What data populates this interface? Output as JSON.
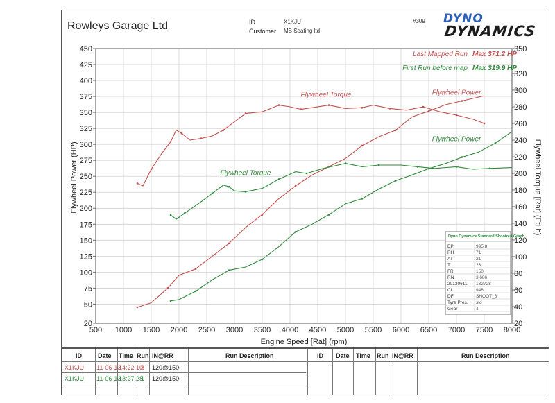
{
  "header": {
    "company": "Rowleys Garage Ltd",
    "id_label": "ID",
    "id_value": "X1KJU",
    "customer_label": "Customer",
    "customer_value": "MB Seating ltd",
    "ref": "#309",
    "logo_line1": "DYNO",
    "logo_line2": "DYNAMICS"
  },
  "legend": {
    "run1_name": "Last Mapped Run",
    "run1_max": "Max 371.2 HP",
    "run2_name": "First Run before map",
    "run2_max": "Max 319.9 HP"
  },
  "colors": {
    "run1": "#c0504d",
    "run2": "#2e8b3a",
    "grid": "#c8c8c8",
    "axis": "#555555"
  },
  "chart_data": {
    "type": "line",
    "xlabel": "Engine Speed [Rat] (rpm)",
    "ylabel": "Flywheel Power (HP)",
    "y2label": "Flywheel Torque [Rat] (FtLb)",
    "xlim": [
      500,
      8000
    ],
    "ylim": [
      20,
      450
    ],
    "y2lim": [
      20,
      350
    ],
    "x_ticks": [
      500,
      1000,
      1500,
      2000,
      2500,
      3000,
      3500,
      4000,
      4500,
      5000,
      5500,
      6000,
      6500,
      7000,
      7500,
      8000
    ],
    "y_ticks": [
      20,
      50,
      75,
      100,
      125,
      150,
      175,
      200,
      225,
      250,
      275,
      300,
      325,
      350,
      375,
      400,
      425,
      450
    ],
    "y2_ticks": [
      20,
      40,
      60,
      80,
      100,
      120,
      140,
      160,
      180,
      200,
      220,
      240,
      260,
      280,
      300,
      320,
      350
    ],
    "grid": true,
    "annotations": [
      {
        "text": "Flywheel Torque",
        "series": "run1",
        "x": 4650,
        "y2": 292
      },
      {
        "text": "Flywheel Power",
        "series": "run1",
        "x": 7000,
        "y": 378
      },
      {
        "text": "Flywheel Torque",
        "series": "run2",
        "x": 3200,
        "y2": 198
      },
      {
        "text": "Flywheel Power",
        "series": "run2",
        "x": 7000,
        "y": 305
      }
    ],
    "series": [
      {
        "name": "Last Mapped Run",
        "quantity": "Flywheel Power",
        "axis": "left",
        "color": "#c0504d",
        "x": [
          1250,
          1500,
          1800,
          2000,
          2300,
          2600,
          2900,
          3200,
          3500,
          3800,
          4100,
          4400,
          4700,
          5000,
          5300,
          5600,
          5900,
          6200,
          6500,
          6800,
          7100,
          7500
        ],
        "y": [
          45,
          52,
          75,
          95,
          105,
          125,
          145,
          170,
          190,
          215,
          235,
          252,
          265,
          278,
          298,
          312,
          322,
          343,
          352,
          362,
          368,
          376
        ]
      },
      {
        "name": "Last Mapped Run",
        "quantity": "Flywheel Torque",
        "axis": "right",
        "color": "#c0504d",
        "x": [
          1250,
          1350,
          1500,
          1700,
          1850,
          1950,
          2050,
          2200,
          2400,
          2600,
          2800,
          3000,
          3200,
          3500,
          3800,
          4000,
          4200,
          4400,
          4700,
          5000,
          5300,
          5500,
          5800,
          6100,
          6400,
          6700,
          7000,
          7300,
          7500
        ],
        "y": [
          188,
          185,
          205,
          225,
          238,
          252,
          248,
          240,
          242,
          245,
          252,
          262,
          272,
          274,
          282,
          280,
          277,
          279,
          282,
          278,
          279,
          282,
          278,
          276,
          280,
          274,
          270,
          265,
          260
        ]
      },
      {
        "name": "First Run before map",
        "quantity": "Flywheel Power",
        "axis": "left",
        "color": "#2e8b3a",
        "x": [
          1850,
          2000,
          2300,
          2600,
          2900,
          3200,
          3500,
          3800,
          4100,
          4400,
          4700,
          5000,
          5300,
          5600,
          5900,
          6200,
          6500,
          6800,
          7100,
          7400,
          7700,
          8000
        ],
        "y": [
          55,
          57,
          70,
          88,
          103,
          108,
          120,
          140,
          163,
          175,
          190,
          207,
          215,
          230,
          243,
          252,
          262,
          270,
          280,
          288,
          302,
          320
        ]
      },
      {
        "name": "First Run before map",
        "quantity": "Flywheel Torque",
        "axis": "right",
        "color": "#2e8b3a",
        "x": [
          1850,
          1950,
          2100,
          2400,
          2600,
          2800,
          2900,
          3000,
          3200,
          3500,
          3800,
          4100,
          4300,
          4600,
          5000,
          5300,
          5600,
          6000,
          6300,
          6600,
          7000,
          7300,
          7600,
          8000
        ],
        "y": [
          150,
          145,
          152,
          166,
          176,
          186,
          184,
          179,
          178,
          182,
          193,
          202,
          200,
          206,
          212,
          208,
          210,
          210,
          208,
          206,
          208,
          205,
          206,
          207
        ]
      }
    ]
  },
  "info_box": {
    "title": "Dyno Dynamics Standard Shootout Graph.",
    "rows": [
      {
        "k": "BP",
        "v": "995.8"
      },
      {
        "k": "RH",
        "v": "71"
      },
      {
        "k": "AT",
        "v": "21"
      },
      {
        "k": "T",
        "v": "23"
      },
      {
        "k": "FR",
        "v": "150"
      },
      {
        "k": "RN",
        "v": "3.686"
      },
      {
        "k": "20130611",
        "v": "132728"
      },
      {
        "k": "CI",
        "v": "948"
      },
      {
        "k": "DF",
        "v": "SHOOT_8"
      },
      {
        "k": "Tyre Pres.",
        "v": "std"
      },
      {
        "k": "Gear",
        "v": "4"
      }
    ]
  },
  "runs_table": {
    "headers": [
      "ID",
      "Date",
      "Time",
      "Run",
      "IN@RR",
      "Run Description"
    ],
    "rows": [
      {
        "id": "X1KJU",
        "date": "11-06-13",
        "time": "14:22:10",
        "run": "8",
        "inrr": "120@150",
        "desc": ""
      },
      {
        "id": "X1KJU",
        "date": "11-06-13",
        "time": "13:27:28",
        "run": "1",
        "inrr": "120@150",
        "desc": ""
      }
    ]
  }
}
